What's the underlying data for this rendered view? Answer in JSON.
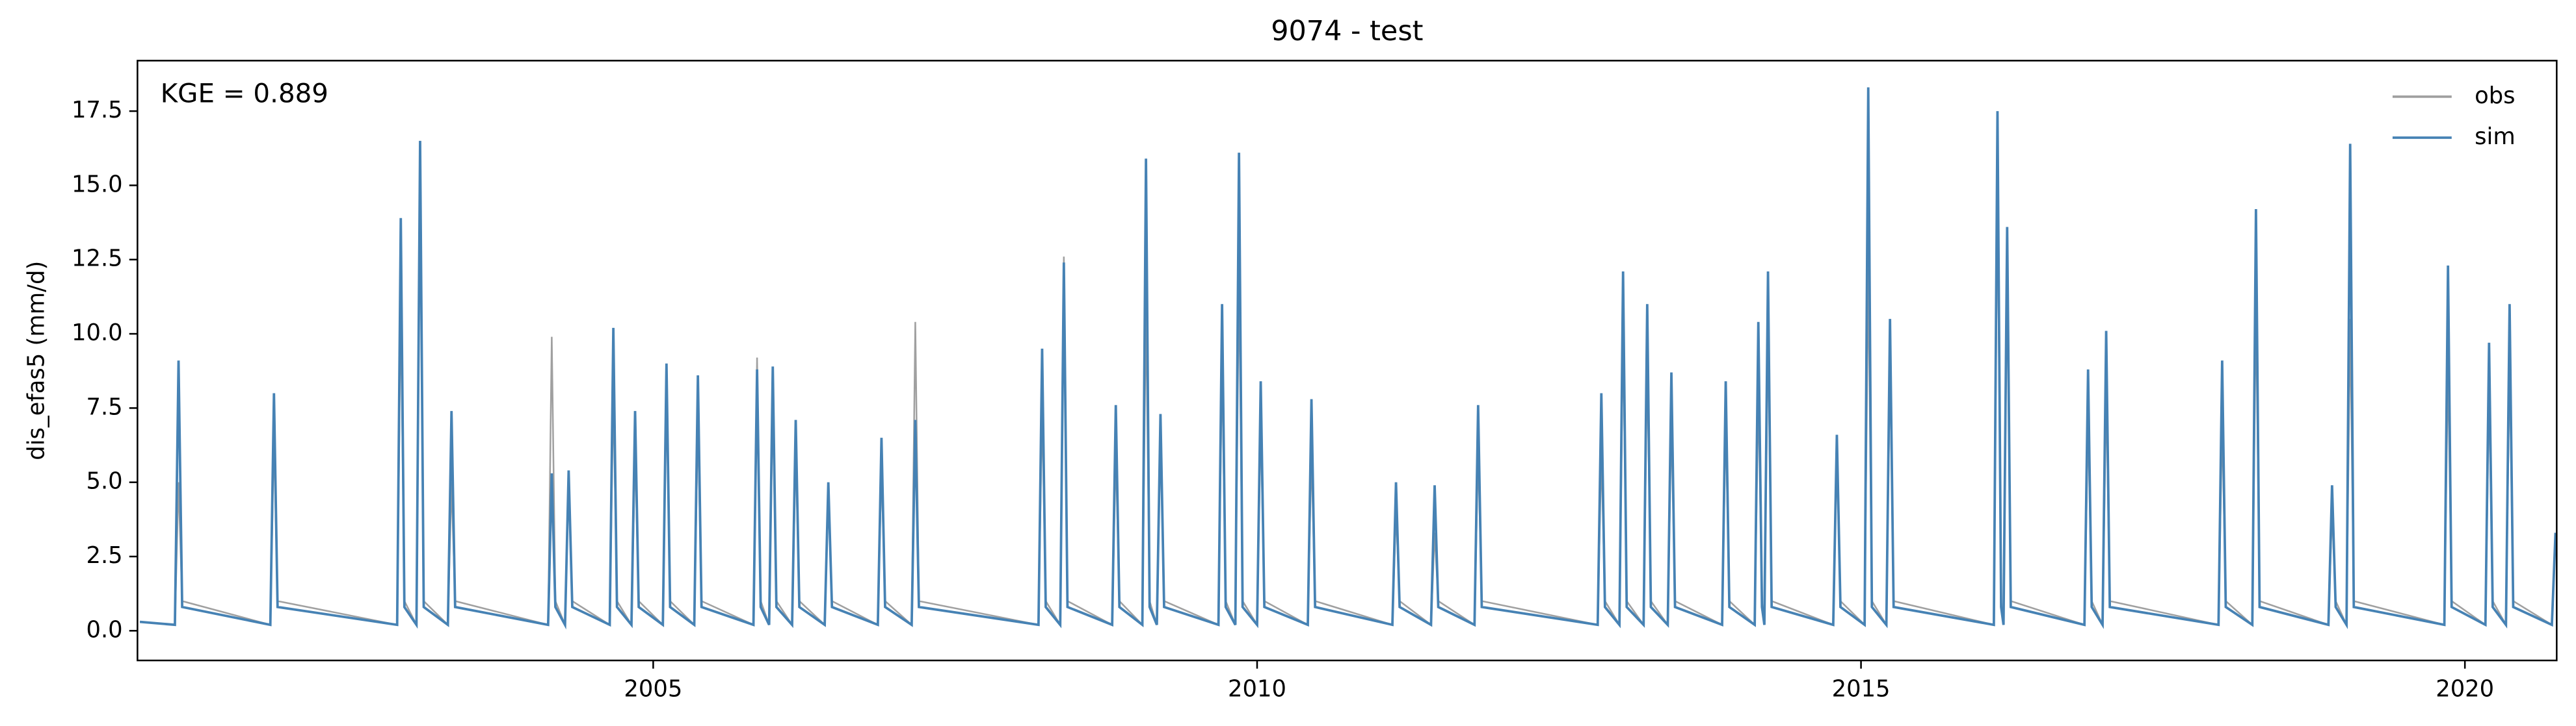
{
  "chart_data": {
    "type": "line",
    "title": "9074 - test",
    "ylabel": "dis_efas5 (mm/d)",
    "annotation": "KGE = 0.889",
    "legend": "upper right",
    "grid": false,
    "xlim": [
      2000.73,
      2020.76
    ],
    "xticks": [
      2005,
      2010,
      2015,
      2020
    ],
    "ylim": [
      -1,
      19.2
    ],
    "yticks": [
      {
        "value": 0,
        "label": "0.0"
      },
      2.5,
      {
        "value": 5,
        "label": "5.0"
      },
      7.5,
      {
        "value": 10,
        "label": "10.0"
      },
      12.5,
      {
        "value": 15,
        "label": "15.0"
      },
      17.5
    ],
    "x": [
      2000.75,
      2001.04,
      2001.07,
      2001.1,
      2001.83,
      2001.86,
      2001.89,
      2002.88,
      2002.91,
      2002.94,
      2003.04,
      2003.07,
      2003.1,
      2003.3,
      2003.33,
      2003.36,
      2004.13,
      2004.16,
      2004.19,
      2004.27,
      2004.3,
      2004.33,
      2004.64,
      2004.67,
      2004.7,
      2004.82,
      2004.85,
      2004.88,
      2005.08,
      2005.11,
      2005.14,
      2005.34,
      2005.37,
      2005.4,
      2005.83,
      2005.86,
      2005.89,
      2005.96,
      2005.99,
      2006.02,
      2006.15,
      2006.18,
      2006.21,
      2006.42,
      2006.45,
      2006.48,
      2006.86,
      2006.89,
      2006.92,
      2007.14,
      2007.17,
      2007.2,
      2008.19,
      2008.22,
      2008.25,
      2008.37,
      2008.4,
      2008.43,
      2008.8,
      2008.83,
      2008.86,
      2009.05,
      2009.08,
      2009.11,
      2009.17,
      2009.2,
      2009.23,
      2009.68,
      2009.71,
      2009.74,
      2009.82,
      2009.85,
      2009.88,
      2010.0,
      2010.03,
      2010.06,
      2010.42,
      2010.45,
      2010.48,
      2011.12,
      2011.15,
      2011.18,
      2011.44,
      2011.47,
      2011.5,
      2011.8,
      2011.83,
      2011.86,
      2012.82,
      2012.85,
      2012.88,
      2013.0,
      2013.03,
      2013.06,
      2013.2,
      2013.23,
      2013.26,
      2013.4,
      2013.43,
      2013.46,
      2013.85,
      2013.88,
      2013.91,
      2014.12,
      2014.15,
      2014.18,
      2014.2,
      2014.23,
      2014.26,
      2014.77,
      2014.8,
      2014.83,
      2015.03,
      2015.06,
      2015.09,
      2015.21,
      2015.24,
      2015.27,
      2016.1,
      2016.13,
      2016.16,
      2016.18,
      2016.21,
      2016.24,
      2016.85,
      2016.88,
      2016.91,
      2017.0,
      2017.03,
      2017.06,
      2017.96,
      2017.99,
      2018.02,
      2018.24,
      2018.27,
      2018.3,
      2018.87,
      2018.9,
      2018.93,
      2019.02,
      2019.05,
      2019.08,
      2019.83,
      2019.86,
      2019.89,
      2020.17,
      2020.2,
      2020.23,
      2020.34,
      2020.37,
      2020.4,
      2020.72,
      2020.75
    ],
    "series": [
      {
        "name": "obs",
        "color": "#a0a0a0",
        "values": [
          0.3,
          0.2,
          5.0,
          1.0,
          0.2,
          6.5,
          1.0,
          0.2,
          11.0,
          1.0,
          0.2,
          15.2,
          1.0,
          0.2,
          5.0,
          1.0,
          0.2,
          9.9,
          1.0,
          0.2,
          5.0,
          1.0,
          0.2,
          8.0,
          1.0,
          0.2,
          6.0,
          1.0,
          0.2,
          8.0,
          1.0,
          0.2,
          7.0,
          1.0,
          0.2,
          9.2,
          1.0,
          0.2,
          7.5,
          1.0,
          0.2,
          6.0,
          1.0,
          0.2,
          4.5,
          1.0,
          0.2,
          5.5,
          1.0,
          0.2,
          10.4,
          1.0,
          0.2,
          7.5,
          1.0,
          0.2,
          12.6,
          1.0,
          0.2,
          6.0,
          1.0,
          0.2,
          11.0,
          1.0,
          0.2,
          6.5,
          1.0,
          0.2,
          9.0,
          1.0,
          0.2,
          12.0,
          1.0,
          0.2,
          7.0,
          1.0,
          0.2,
          6.0,
          1.0,
          0.2,
          4.0,
          1.0,
          0.2,
          3.3,
          1.0,
          0.2,
          6.0,
          1.0,
          0.2,
          6.0,
          1.0,
          0.2,
          10.0,
          1.0,
          0.2,
          9.0,
          1.0,
          0.2,
          7.0,
          1.0,
          0.2,
          7.0,
          1.0,
          0.2,
          8.0,
          1.0,
          0.2,
          10.0,
          1.0,
          0.2,
          6.0,
          1.0,
          0.2,
          12.2,
          1.0,
          0.2,
          9.0,
          1.0,
          0.2,
          15.0,
          1.0,
          0.2,
          12.0,
          1.0,
          0.2,
          7.0,
          1.0,
          0.2,
          8.0,
          1.0,
          0.2,
          7.0,
          1.0,
          0.2,
          11.0,
          1.0,
          0.2,
          4.0,
          1.0,
          0.2,
          10.5,
          1.0,
          0.2,
          9.0,
          1.0,
          0.2,
          8.0,
          1.0,
          0.2,
          9.0,
          1.0,
          0.2,
          3.3
        ]
      },
      {
        "name": "sim",
        "color": "#4682b4",
        "values": [
          0.3,
          0.2,
          9.1,
          0.8,
          0.2,
          8.0,
          0.8,
          0.2,
          13.9,
          0.8,
          0.2,
          16.5,
          0.8,
          0.2,
          7.4,
          0.8,
          0.2,
          5.3,
          0.8,
          0.2,
          5.4,
          0.8,
          0.2,
          10.2,
          0.8,
          0.2,
          7.4,
          0.8,
          0.2,
          9.0,
          0.8,
          0.2,
          8.6,
          0.8,
          0.2,
          8.8,
          0.8,
          0.2,
          8.9,
          0.8,
          0.2,
          7.1,
          0.8,
          0.2,
          5.0,
          0.8,
          0.2,
          6.5,
          0.8,
          0.2,
          7.1,
          0.8,
          0.2,
          9.5,
          0.8,
          0.2,
          12.4,
          0.8,
          0.2,
          7.6,
          0.8,
          0.2,
          15.9,
          0.8,
          0.2,
          7.3,
          0.8,
          0.2,
          11.0,
          0.8,
          0.2,
          16.1,
          0.8,
          0.2,
          8.4,
          0.8,
          0.2,
          7.8,
          0.8,
          0.2,
          5.0,
          0.8,
          0.2,
          4.9,
          0.8,
          0.2,
          7.6,
          0.8,
          0.2,
          8.0,
          0.8,
          0.2,
          12.1,
          0.8,
          0.2,
          11.0,
          0.8,
          0.2,
          8.7,
          0.8,
          0.2,
          8.4,
          0.8,
          0.2,
          10.4,
          0.8,
          0.2,
          12.1,
          0.8,
          0.2,
          6.6,
          0.8,
          0.2,
          18.3,
          0.8,
          0.2,
          10.5,
          0.8,
          0.2,
          17.5,
          0.8,
          0.2,
          13.6,
          0.8,
          0.2,
          8.8,
          0.8,
          0.2,
          10.1,
          0.8,
          0.2,
          9.1,
          0.8,
          0.2,
          14.2,
          0.8,
          0.2,
          4.9,
          0.8,
          0.2,
          16.4,
          0.8,
          0.2,
          12.3,
          0.8,
          0.2,
          9.7,
          0.8,
          0.2,
          11.0,
          0.8,
          0.2,
          3.3
        ]
      }
    ]
  }
}
